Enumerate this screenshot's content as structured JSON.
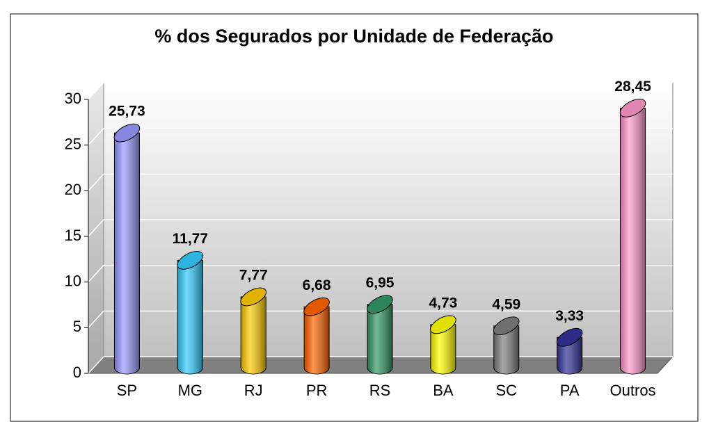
{
  "chart_data": {
    "type": "cylinder",
    "title": "% dos Segurados por Unidade de Federação",
    "categories": [
      "SP",
      "MG",
      "RJ",
      "PR",
      "RS",
      "BA",
      "SC",
      "PA",
      "Outros"
    ],
    "values": [
      25.73,
      11.77,
      7.77,
      6.68,
      6.95,
      4.73,
      4.59,
      3.33,
      28.45
    ],
    "value_labels": [
      "25,73",
      "11,77",
      "7,77",
      "6,68",
      "6,95",
      "4,73",
      "4,59",
      "3,33",
      "28,45"
    ],
    "colors": [
      "#9999ff",
      "#33ccff",
      "#ffcc00",
      "#ff6600",
      "#339966",
      "#ffff00",
      "#808080",
      "#333399",
      "#ff99cc"
    ],
    "ylim": [
      0,
      30
    ],
    "yticks": [
      0,
      5,
      10,
      15,
      20,
      25,
      30
    ],
    "grid": true
  }
}
